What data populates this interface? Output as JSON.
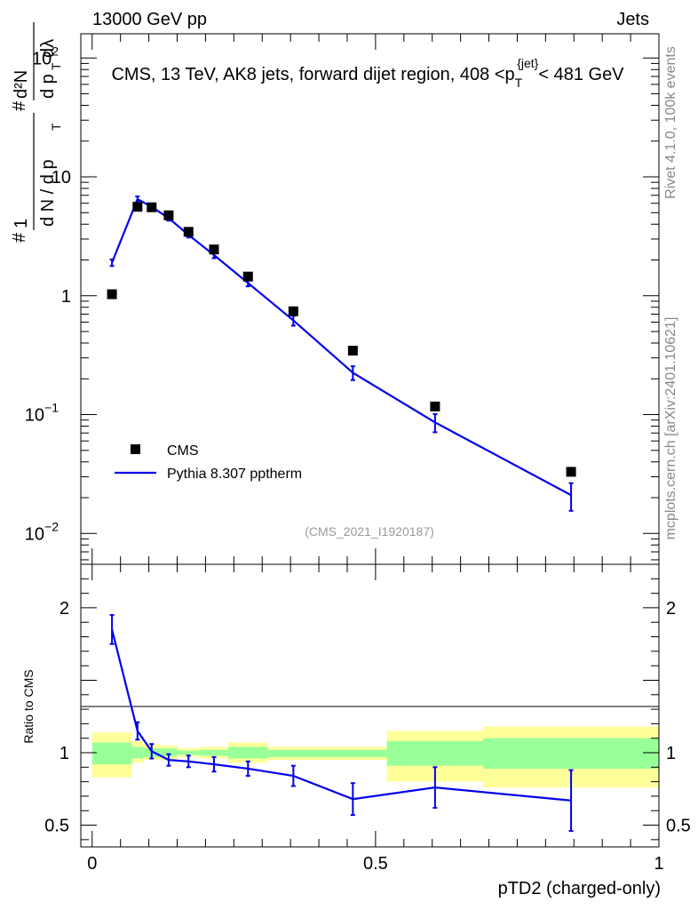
{
  "header": {
    "left": "13000 GeV pp",
    "right": "Jets"
  },
  "side": {
    "rivet": "Rivet 4.1.0,  100k events",
    "mcplots": "mcplots.cern.ch [arXiv:2401.10621]"
  },
  "chart_data": [
    {
      "type": "scatter",
      "panel": "main",
      "title": "CMS, 13 TeV, AK8 jets, forward dijet region, 408 <p_T^{jet}< 481 GeV",
      "title_parts": {
        "pre": "CMS, 13 TeV, AK8 jets, forward dijet region, 408 <p",
        "sub": "T",
        "sup": "{jet}",
        "post": "< 481 GeV"
      },
      "ylabel": "1/(dN/dpT) d²N/(dpT dλ)",
      "ylabel_parts": {
        "hash": "#",
        "one": "1",
        "dN": "d N / d p",
        "T": "T",
        "d2N": "d²N",
        "dpdl": "d p",
        "dl": "dλ"
      },
      "yscale": "log",
      "ylim": [
        0.0055,
        160
      ],
      "xlim": [
        -0.02,
        1.0
      ],
      "y_ticks": [
        {
          "value": 100,
          "label": "10",
          "exp": "2"
        },
        {
          "value": 10,
          "label": "10",
          "exp": ""
        },
        {
          "value": 1,
          "label": "1",
          "exp": ""
        },
        {
          "value": 0.1,
          "label": "10",
          "exp": "−1"
        },
        {
          "value": 0.01,
          "label": "10",
          "exp": "−2"
        }
      ],
      "watermark": "(CMS_2021_I1920187)",
      "legend": {
        "position": "bottom-left",
        "data_label": "CMS",
        "mc_label": "Pythia 8.307 pptherm"
      },
      "series": [
        {
          "name": "CMS",
          "style": "markers",
          "color": "#000000",
          "x": [
            0.035,
            0.08,
            0.105,
            0.135,
            0.17,
            0.215,
            0.275,
            0.355,
            0.46,
            0.605,
            0.845
          ],
          "y": [
            1.03,
            5.6,
            5.55,
            4.75,
            3.45,
            2.45,
            1.45,
            0.74,
            0.345,
            0.117,
            0.033
          ]
        },
        {
          "name": "Pythia 8.307 pptherm",
          "style": "line",
          "color": "#0000ee",
          "x": [
            0.035,
            0.08,
            0.105,
            0.135,
            0.17,
            0.215,
            0.275,
            0.355,
            0.46,
            0.605,
            0.845
          ],
          "y": [
            1.9,
            6.5,
            5.6,
            4.5,
            3.25,
            2.2,
            1.28,
            0.62,
            0.225,
            0.086,
            0.021
          ],
          "err": [
            0.12,
            0.35,
            0.25,
            0.22,
            0.16,
            0.13,
            0.08,
            0.06,
            0.03,
            0.015,
            0.0055
          ]
        }
      ]
    },
    {
      "type": "line",
      "panel": "ratio",
      "ylabel": "Ratio to CMS",
      "xlabel": "pTD2 (charged-only)",
      "xlim": [
        -0.02,
        1.0
      ],
      "ylim": [
        0.35,
        2.3
      ],
      "x_ticks": [
        {
          "value": 0,
          "label": "0"
        },
        {
          "value": 0.5,
          "label": "0.5"
        },
        {
          "value": 1,
          "label": "1"
        }
      ],
      "y_ticks": [
        {
          "value": 2,
          "label": "2"
        },
        {
          "value": 1,
          "label": "1"
        },
        {
          "value": 0.5,
          "label": "0.5"
        }
      ],
      "bands": [
        {
          "x0": 0.0,
          "x1": 0.07,
          "y_lo": 0.83,
          "y_hi": 1.14,
          "g_lo": 0.92,
          "g_hi": 1.07
        },
        {
          "x0": 0.07,
          "x1": 0.09,
          "y_lo": 0.93,
          "y_hi": 1.08,
          "g_lo": 0.96,
          "g_hi": 1.04
        },
        {
          "x0": 0.09,
          "x1": 0.12,
          "y_lo": 0.95,
          "y_hi": 1.06,
          "g_lo": 0.97,
          "g_hi": 1.03
        },
        {
          "x0": 0.12,
          "x1": 0.15,
          "y_lo": 0.95,
          "y_hi": 1.05,
          "g_lo": 0.975,
          "g_hi": 1.03
        },
        {
          "x0": 0.15,
          "x1": 0.19,
          "y_lo": 0.97,
          "y_hi": 1.03,
          "g_lo": 0.985,
          "g_hi": 1.015
        },
        {
          "x0": 0.19,
          "x1": 0.24,
          "y_lo": 0.96,
          "y_hi": 1.04,
          "g_lo": 0.98,
          "g_hi": 1.02
        },
        {
          "x0": 0.24,
          "x1": 0.31,
          "y_lo": 0.93,
          "y_hi": 1.07,
          "g_lo": 0.96,
          "g_hi": 1.04
        },
        {
          "x0": 0.31,
          "x1": 0.4,
          "y_lo": 0.95,
          "y_hi": 1.04,
          "g_lo": 0.97,
          "g_hi": 1.02
        },
        {
          "x0": 0.4,
          "x1": 0.52,
          "y_lo": 0.95,
          "y_hi": 1.04,
          "g_lo": 0.97,
          "g_hi": 1.02
        },
        {
          "x0": 0.52,
          "x1": 0.69,
          "y_lo": 0.8,
          "y_hi": 1.15,
          "g_lo": 0.91,
          "g_hi": 1.08
        },
        {
          "x0": 0.69,
          "x1": 1.0,
          "y_lo": 0.76,
          "y_hi": 1.18,
          "g_lo": 0.89,
          "g_hi": 1.1
        }
      ],
      "series": [
        {
          "name": "Pythia 8.307 pptherm / CMS",
          "color": "#0000ee",
          "x": [
            0.035,
            0.08,
            0.105,
            0.135,
            0.17,
            0.215,
            0.275,
            0.355,
            0.46,
            0.605,
            0.845
          ],
          "y": [
            1.85,
            1.15,
            1.01,
            0.95,
            0.94,
            0.92,
            0.89,
            0.84,
            0.68,
            0.76,
            0.67
          ],
          "err": [
            0.1,
            0.06,
            0.05,
            0.04,
            0.04,
            0.05,
            0.05,
            0.07,
            0.11,
            0.14,
            0.21
          ]
        }
      ]
    }
  ]
}
